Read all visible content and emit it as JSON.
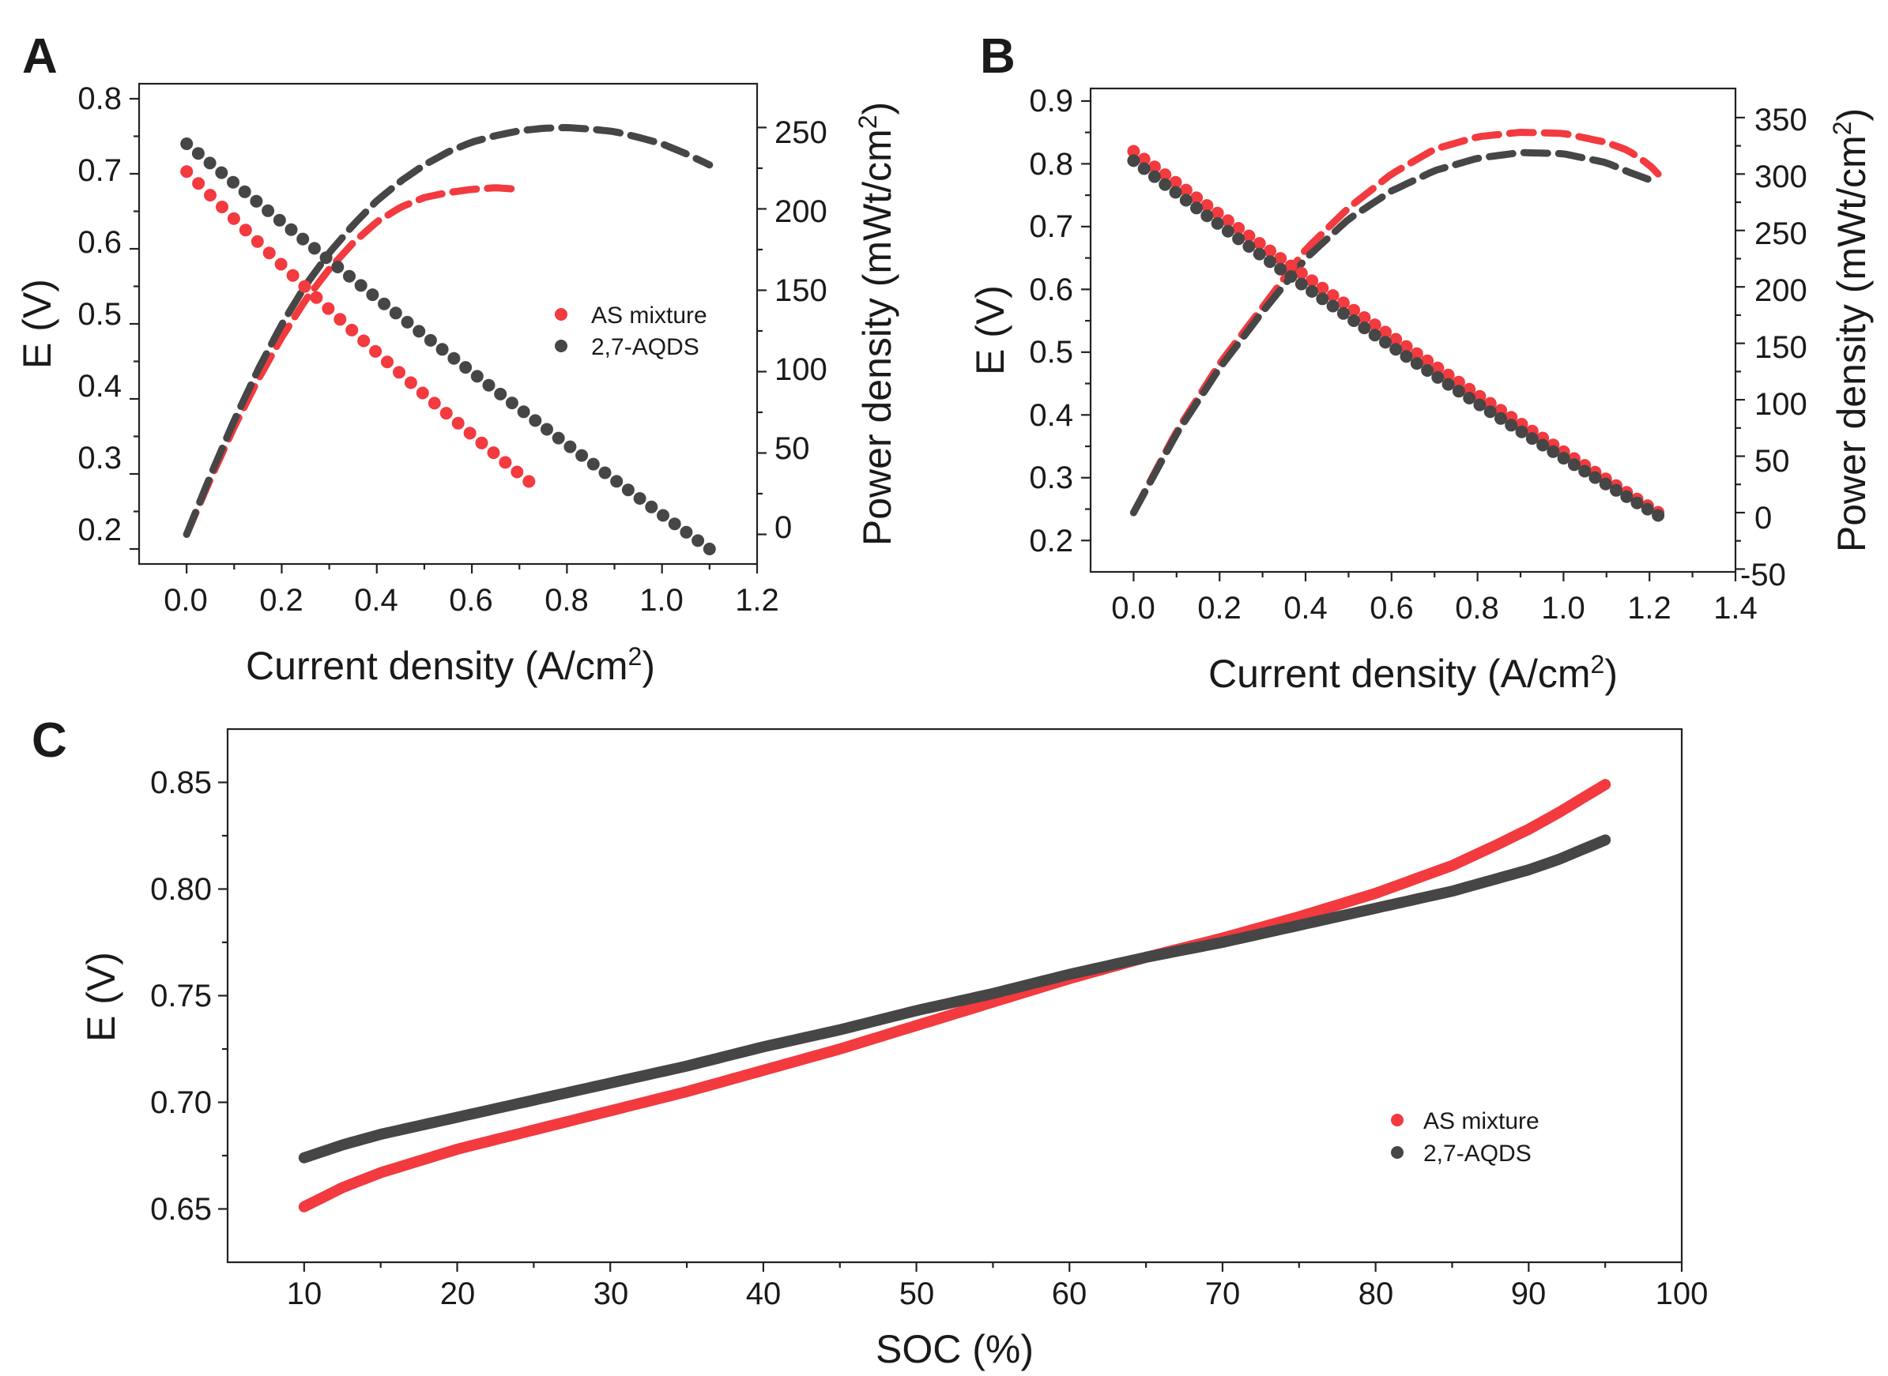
{
  "colors": {
    "as_mixture": "#f23a3f",
    "aqds": "#464646"
  },
  "chart_data": [
    {
      "panel": "A",
      "type": "scatter",
      "xlabel": "Current density (A/cm",
      "xlabel_sup": "2",
      "xlabel_end": ")",
      "ylabel": "E (V)",
      "y2label": "Power density (mWt/cm",
      "y2label_sup": "2",
      "y2label_end": ")",
      "xlim": [
        -0.1,
        1.2
      ],
      "ylim": [
        0.18,
        0.82
      ],
      "y2lim": [
        -18.2,
        276.9
      ],
      "xticks": [
        "0.0",
        "0.2",
        "0.4",
        "0.6",
        "0.8",
        "1.0",
        "1.2"
      ],
      "yticks": [
        "0.2",
        "0.3",
        "0.4",
        "0.5",
        "0.6",
        "0.7",
        "0.8"
      ],
      "y2ticks": [
        "0",
        "50",
        "100",
        "150",
        "200",
        "250"
      ],
      "legend": [
        "AS mixture",
        "2,7-AQDS"
      ],
      "legend_position": "middle-right",
      "series": [
        {
          "name": "AS mixture",
          "kind": "polarization",
          "x_start": 0,
          "x_end": 0.72,
          "y_start": 0.703,
          "y_end": 0.29,
          "curvature": 0.012
        },
        {
          "name": "2,7-AQDS",
          "kind": "polarization",
          "x_start": 0,
          "x_end": 1.1,
          "y_start": 0.74,
          "y_end": 0.2,
          "curvature": 0.01
        },
        {
          "name": "AS mixture",
          "kind": "power",
          "x": [
            0,
            0.05,
            0.1,
            0.15,
            0.2,
            0.25,
            0.3,
            0.35,
            0.4,
            0.45,
            0.5,
            0.55,
            0.6,
            0.65,
            0.7
          ],
          "y": [
            0,
            34,
            66,
            95,
            121,
            144,
            163,
            179,
            192,
            201,
            207,
            210,
            212,
            213,
            212
          ]
        },
        {
          "name": "2,7-AQDS",
          "kind": "power",
          "x": [
            0,
            0.05,
            0.1,
            0.15,
            0.2,
            0.25,
            0.3,
            0.35,
            0.4,
            0.45,
            0.5,
            0.55,
            0.6,
            0.65,
            0.7,
            0.75,
            0.8,
            0.85,
            0.9,
            0.95,
            1.0,
            1.05,
            1.1
          ],
          "y": [
            0,
            36,
            70,
            101,
            129,
            153,
            173,
            190,
            205,
            217,
            227,
            235,
            241,
            245,
            248,
            249.5,
            250,
            249,
            247.5,
            244,
            240,
            234,
            227
          ]
        }
      ]
    },
    {
      "panel": "B",
      "type": "scatter",
      "xlabel": "Current density (A/cm",
      "xlabel_sup": "2",
      "xlabel_end": ")",
      "ylabel": "E (V)",
      "y2label": "Power density (mWt/cm",
      "y2label_sup": "2",
      "y2label_end": ")",
      "xlim": [
        -0.1,
        1.4
      ],
      "ylim": [
        0.15,
        0.92
      ],
      "y2lim": [
        -52.5,
        375.8
      ],
      "xticks": [
        "0.0",
        "0.2",
        "0.4",
        "0.6",
        "0.8",
        "1.0",
        "1.2",
        "1.4"
      ],
      "yticks": [
        "0.2",
        "0.3",
        "0.4",
        "0.5",
        "0.6",
        "0.7",
        "0.8",
        "0.9"
      ],
      "y2ticks": [
        "-50",
        "0",
        "50",
        "100",
        "150",
        "200",
        "250",
        "300",
        "350"
      ],
      "series": [
        {
          "name": "AS mixture",
          "kind": "polarization",
          "x_start": 0,
          "x_end": 1.22,
          "y_start": 0.82,
          "y_end": 0.245,
          "curvature": 0.012
        },
        {
          "name": "2,7-AQDS",
          "kind": "polarization",
          "x_start": 0,
          "x_end": 1.22,
          "y_start": 0.805,
          "y_end": 0.24,
          "curvature": 0.018
        },
        {
          "name": "AS mixture",
          "kind": "power",
          "x": [
            0,
            0.1,
            0.2,
            0.3,
            0.4,
            0.5,
            0.6,
            0.7,
            0.8,
            0.9,
            1.0,
            1.1,
            1.15,
            1.2,
            1.22
          ],
          "y": [
            0,
            72,
            132,
            182,
            233,
            270,
            300,
            322,
            333,
            337,
            336,
            328,
            321,
            308,
            300
          ]
        },
        {
          "name": "2,7-AQDS",
          "kind": "power",
          "x": [
            0,
            0.1,
            0.2,
            0.3,
            0.4,
            0.5,
            0.6,
            0.7,
            0.8,
            0.9,
            1.0,
            1.1,
            1.15,
            1.2
          ],
          "y": [
            0,
            70,
            128,
            178,
            225,
            260,
            285,
            303,
            314,
            319,
            318,
            310,
            302,
            295
          ]
        }
      ]
    },
    {
      "panel": "C",
      "type": "scatter",
      "xlabel": "SOC (%)",
      "ylabel": "E (V)",
      "xlim": [
        5,
        100
      ],
      "ylim": [
        0.625,
        0.875
      ],
      "xticks": [
        "10",
        "20",
        "30",
        "40",
        "50",
        "60",
        "70",
        "80",
        "90",
        "100"
      ],
      "yticks": [
        "0.65",
        "0.70",
        "0.75",
        "0.80",
        "0.85"
      ],
      "legend": [
        "AS mixture",
        "2,7-AQDS"
      ],
      "legend_position": "bottom-right",
      "series": [
        {
          "name": "AS mixture",
          "x": [
            10,
            12.5,
            15,
            20,
            25,
            30,
            35,
            40,
            45,
            50,
            55,
            60,
            65,
            70,
            75,
            80,
            85,
            88,
            90,
            92,
            95
          ],
          "y": [
            0.651,
            0.66,
            0.667,
            0.678,
            0.687,
            0.696,
            0.705,
            0.715,
            0.725,
            0.736,
            0.747,
            0.758,
            0.768,
            0.777,
            0.787,
            0.798,
            0.811,
            0.821,
            0.828,
            0.836,
            0.849
          ]
        },
        {
          "name": "2,7-AQDS",
          "x": [
            10,
            12.5,
            15,
            20,
            25,
            30,
            35,
            40,
            45,
            50,
            55,
            60,
            65,
            70,
            75,
            80,
            85,
            88,
            90,
            92,
            95
          ],
          "y": [
            0.674,
            0.68,
            0.685,
            0.693,
            0.701,
            0.709,
            0.717,
            0.726,
            0.734,
            0.743,
            0.751,
            0.76,
            0.768,
            0.775,
            0.783,
            0.791,
            0.799,
            0.805,
            0.809,
            0.814,
            0.823
          ]
        }
      ]
    }
  ]
}
